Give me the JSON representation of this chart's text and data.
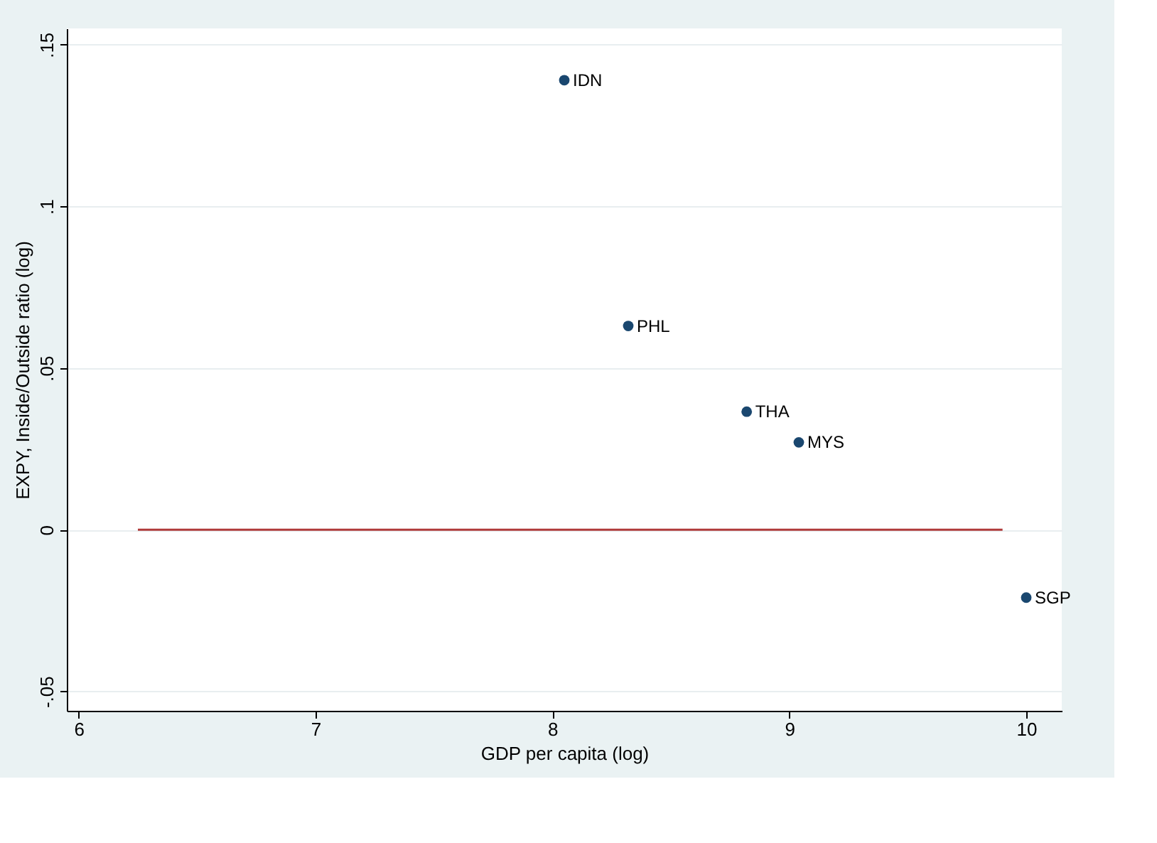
{
  "chart_data": {
    "type": "scatter",
    "xlabel": "GDP per capita (log)",
    "ylabel": "EXPY, Inside/Outside ratio (log)",
    "xlim": [
      5.95,
      10.15
    ],
    "xticks": [
      6,
      7,
      8,
      9,
      10
    ],
    "ylim": [
      -0.056,
      0.155
    ],
    "yticks": [
      {
        "value": 0.15,
        "label": ".15"
      },
      {
        "value": 0.1,
        "label": ".1"
      },
      {
        "value": 0.05,
        "label": ".05"
      },
      {
        "value": 0,
        "label": "0"
      },
      {
        "value": -0.05,
        "label": "-.05"
      }
    ],
    "grid": "y",
    "marker": "circle",
    "series": [
      {
        "color": "#1a476f",
        "x": [
          8.05,
          8.32,
          8.82,
          9.04,
          10.0
        ],
        "values": [
          0.139,
          0.063,
          0.0365,
          0.027,
          -0.021
        ]
      },
      {
        "type": "line",
        "marker": "none",
        "line_style": "solid",
        "color": "#b03a3a",
        "x": [
          6.25,
          9.9
        ],
        "values": [
          0,
          0
        ]
      }
    ],
    "annotations": [
      {
        "text": "IDN",
        "x": 8.05,
        "y": 0.139
      },
      {
        "text": "PHL",
        "x": 8.32,
        "y": 0.063
      },
      {
        "text": "THA",
        "x": 8.82,
        "y": 0.0365
      },
      {
        "text": "MYS",
        "x": 9.04,
        "y": 0.027
      },
      {
        "text": "SGP",
        "x": 10.0,
        "y": -0.021
      }
    ]
  }
}
